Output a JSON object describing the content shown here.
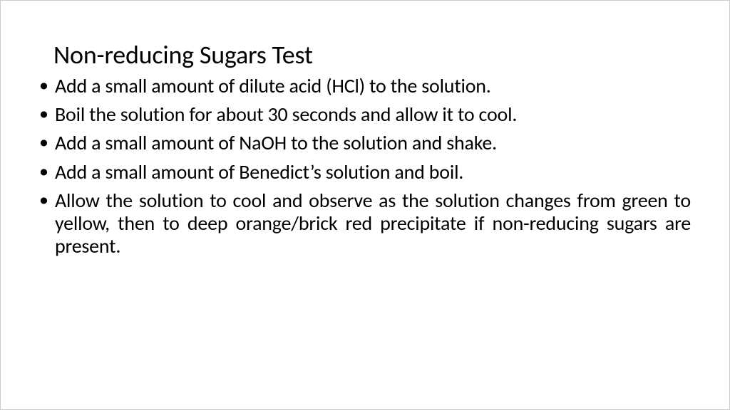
{
  "slide": {
    "title": "Non-reducing Sugars Test",
    "bullets": [
      {
        "text": "Add a small amount of dilute acid (HCl) to the solution.",
        "justify": false
      },
      {
        "text": "Boil the solution for about 30 seconds and allow it to cool.",
        "justify": false
      },
      {
        "text": "Add a small amount of NaOH to the solution and shake.",
        "justify": false
      },
      {
        "text": "Add a small amount of Benedict’s solution and boil.",
        "justify": false
      },
      {
        "text": "Allow the solution to cool and observe as the solution changes from green to yellow, then to deep orange/brick red precipitate if non-reducing sugars are present.",
        "justify": true
      }
    ]
  },
  "style": {
    "background_color": "#ffffff",
    "text_color": "#000000",
    "title_fontsize": 36,
    "bullet_fontsize": 28,
    "font_family": "Calibri"
  }
}
